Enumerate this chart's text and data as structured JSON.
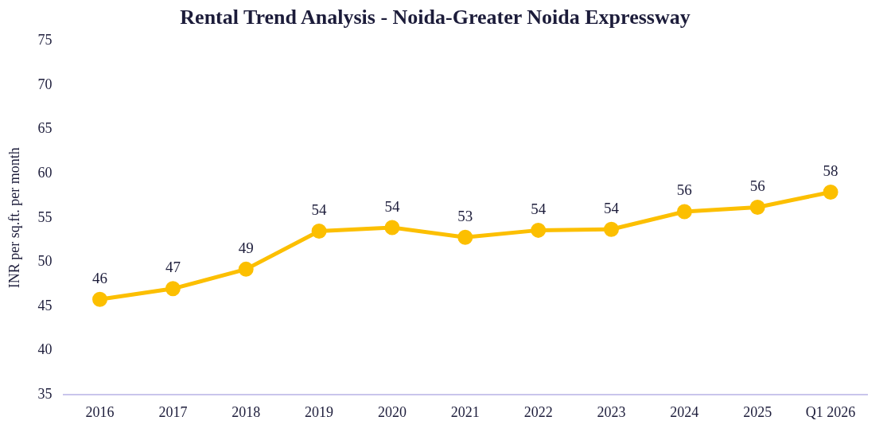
{
  "chart_data": {
    "type": "line",
    "title": "Rental Trend Analysis - Noida-Greater Noida Expressway",
    "ylabel": "INR per sq.ft. per month",
    "categories": [
      "2016",
      "2017",
      "2018",
      "2019",
      "2020",
      "2021",
      "2022",
      "2023",
      "2024",
      "2025",
      "Q1 2026"
    ],
    "series": [
      {
        "color": "#fcbf00",
        "values": [
          45.8,
          47.0,
          49.2,
          53.5,
          53.9,
          52.8,
          53.6,
          53.7,
          55.7,
          56.2,
          57.9
        ],
        "value_labels": [
          "46",
          "47",
          "49",
          "54",
          "54",
          "53",
          "54",
          "54",
          "56",
          "56",
          "58"
        ]
      }
    ],
    "ylim": [
      35,
      75
    ],
    "yticks": [
      35,
      40,
      45,
      50,
      55,
      60,
      65,
      70,
      75
    ],
    "grid": false,
    "legend": false,
    "marker": "circle",
    "line_style": "solid"
  }
}
